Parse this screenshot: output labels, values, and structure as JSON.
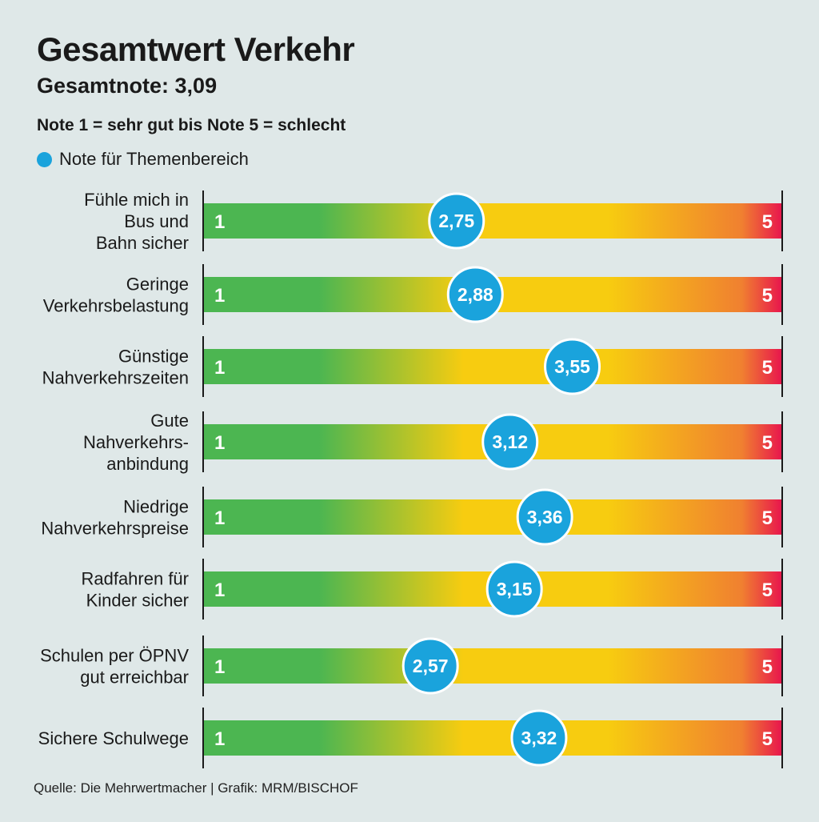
{
  "header": {
    "title": "Gesamtwert Verkehr",
    "subtitle": "Gesamtnote: 3,09",
    "scale_note": "Note 1 = sehr gut bis Note 5 = schlecht",
    "legend_label": "Note für Themenbereich"
  },
  "source": "Quelle: Die Mehrwertmacher | Grafik: MRM/BISCHOF",
  "colors": {
    "good": "#4cb651",
    "medium": "#f7cc10",
    "poor": "#f08030",
    "bad": "#e8154d",
    "marker": "#1aa3dc",
    "background": "#dfe8e8"
  },
  "chart_data": {
    "type": "bar",
    "title": "Gesamtwert Verkehr",
    "xlim": [
      1,
      5
    ],
    "scale_min_label": "1",
    "scale_max_label": "5",
    "categories": [
      [
        "Fühle mich in",
        "Bus und",
        "Bahn sicher"
      ],
      [
        "Geringe",
        "Verkehrsbelastung"
      ],
      [
        "Günstige",
        "Nahverkehrszeiten"
      ],
      [
        "Gute",
        "Nahverkehrs-",
        "anbindung"
      ],
      [
        "Niedrige",
        "Nahverkehrspreise"
      ],
      [
        "Radfahren für",
        "Kinder sicher"
      ],
      [
        "Schulen per ÖPNV",
        "gut erreichbar"
      ],
      [
        "Sichere Schulwege"
      ]
    ],
    "values": [
      2.75,
      2.88,
      3.55,
      3.12,
      3.36,
      3.15,
      2.57,
      3.32
    ],
    "value_labels": [
      "2,75",
      "2,88",
      "3,55",
      "3,12",
      "3,36",
      "3,15",
      "2,57",
      "3,32"
    ]
  }
}
